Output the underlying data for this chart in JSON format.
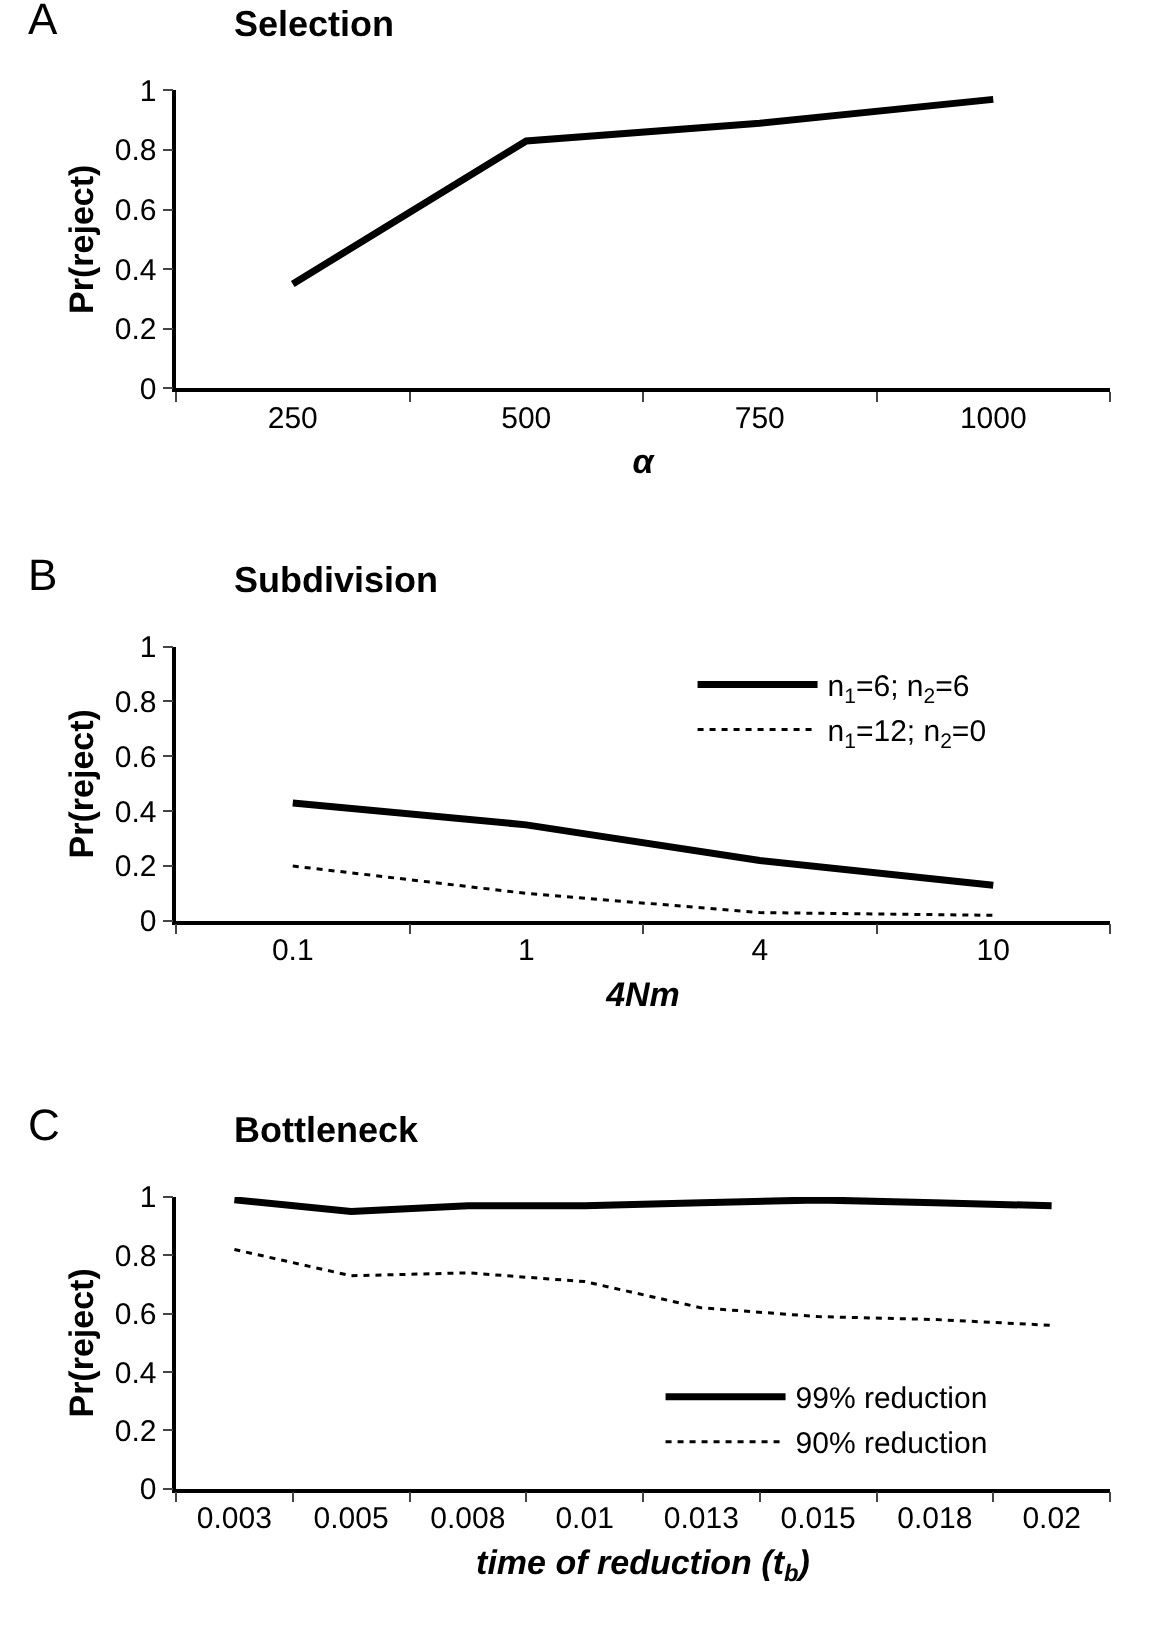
{
  "chart_data": [
    {
      "type": "line",
      "title": "Selection",
      "xlabel": "α",
      "ylabel": "Pr(reject)",
      "annotations": [
        "A"
      ],
      "categories": [
        "250",
        "500",
        "750",
        "1000"
      ],
      "series": [
        {
          "color": "#000000",
          "line_style": "solid",
          "values": [
            0.35,
            0.83,
            0.89,
            0.97
          ]
        }
      ],
      "ylim": [
        0,
        1
      ],
      "yticks": [
        0,
        0.2,
        0.4,
        0.6,
        0.8,
        1
      ],
      "legend": false,
      "marker": "none"
    },
    {
      "type": "line",
      "title": "Subdivision",
      "xlabel": "4Nm",
      "ylabel": "Pr(reject)",
      "annotations": [
        "B"
      ],
      "categories": [
        "0.1",
        "1",
        "4",
        "10"
      ],
      "series": [
        {
          "name": "n$_{1}$=6; n$_{2}$=6",
          "color": "#000000",
          "line_style": "solid",
          "values": [
            0.43,
            0.35,
            0.22,
            0.13
          ]
        },
        {
          "name": "n$_{1}$=12; n$_{2}$=0",
          "color": "#000000",
          "line_style": "dotted",
          "values": [
            0.2,
            0.1,
            0.03,
            0.02
          ]
        }
      ],
      "ylim": [
        0,
        1
      ],
      "yticks": [
        0,
        0.2,
        0.4,
        0.6,
        0.8,
        1
      ],
      "legend": "top right",
      "marker": "none"
    },
    {
      "type": "line",
      "title": "Bottleneck",
      "xlabel": "time of reduction (t$_{b}$)",
      "ylabel": "Pr(reject)",
      "annotations": [
        "C"
      ],
      "categories": [
        "0.003",
        "0.005",
        "0.008",
        "0.01",
        "0.013",
        "0.015",
        "0.018",
        "0.02"
      ],
      "series": [
        {
          "name": "99% reduction",
          "color": "#000000",
          "line_style": "solid",
          "values": [
            0.99,
            0.95,
            0.97,
            0.97,
            0.98,
            0.99,
            0.98,
            0.97
          ]
        },
        {
          "name": "90% reduction",
          "color": "#000000",
          "line_style": "dotted",
          "values": [
            0.82,
            0.73,
            0.74,
            0.71,
            0.62,
            0.59,
            0.58,
            0.56
          ]
        }
      ],
      "ylim": [
        0,
        1
      ],
      "yticks": [
        0,
        0.2,
        0.4,
        0.6,
        0.8,
        1
      ],
      "legend": "bottom right",
      "marker": "none"
    }
  ]
}
